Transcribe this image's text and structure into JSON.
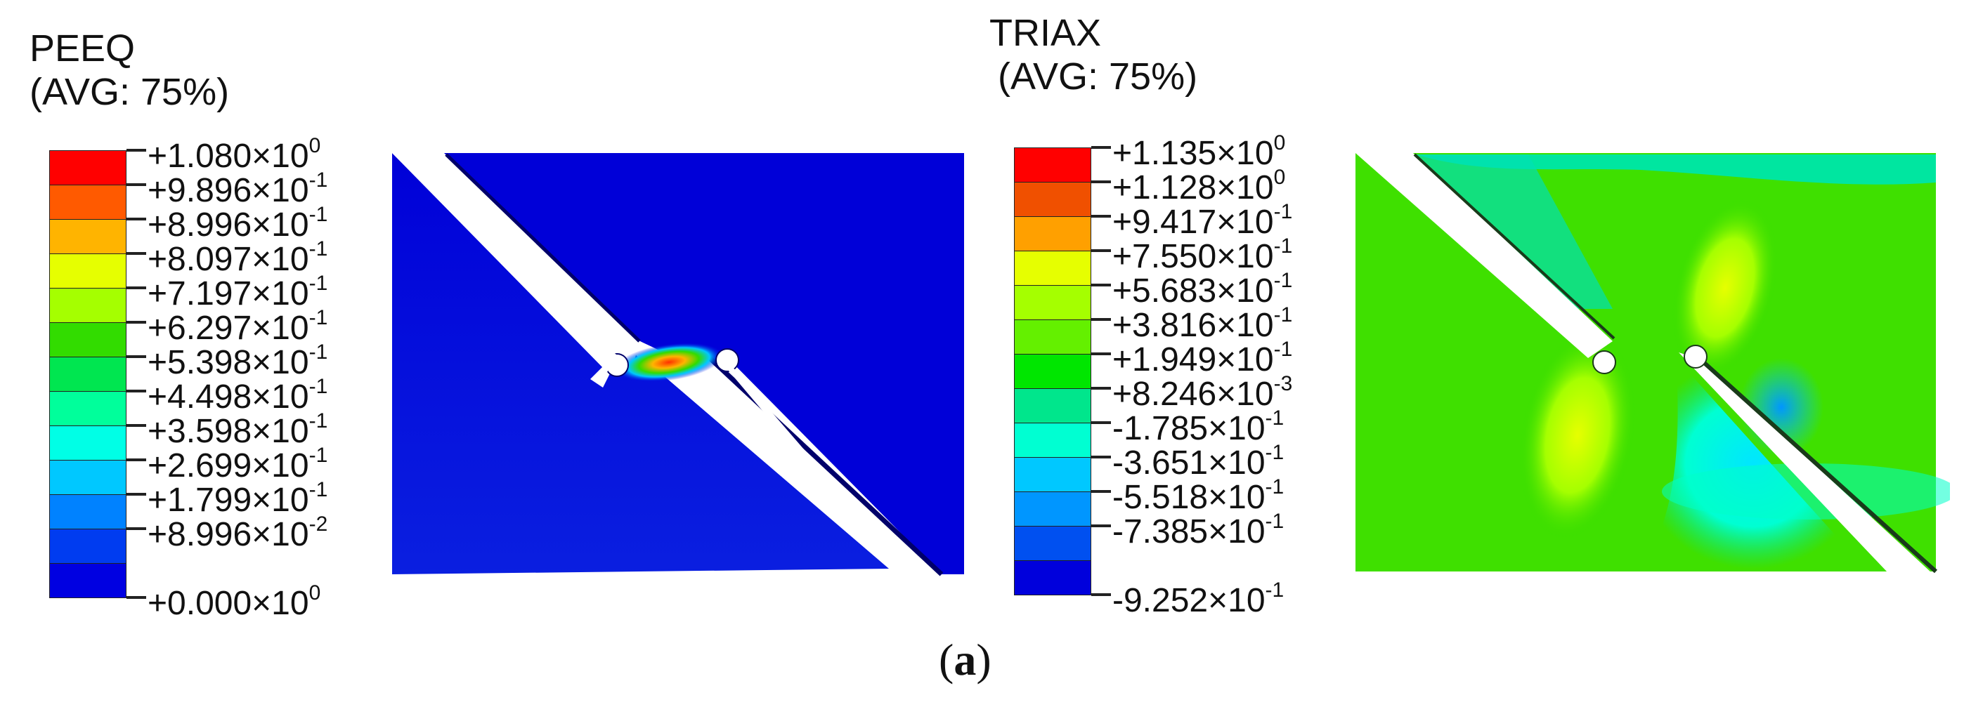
{
  "figure_label": {
    "open": "(",
    "letter": "a",
    "close": ")"
  },
  "left": {
    "title_line1": "PEEQ",
    "title_line2": "(AVG: 75%)",
    "colors": [
      "#ff0000",
      "#ff5a00",
      "#ffb400",
      "#e6ff00",
      "#a5ff00",
      "#32dc00",
      "#00e650",
      "#00ff9b",
      "#00ffe6",
      "#00c8ff",
      "#0082ff",
      "#003cf0",
      "#0000e1"
    ],
    "labels": [
      {
        "mant": "+1.080",
        "exp": "0"
      },
      {
        "mant": "+9.896",
        "exp": "-1"
      },
      {
        "mant": "+8.996",
        "exp": "-1"
      },
      {
        "mant": "+8.097",
        "exp": "-1"
      },
      {
        "mant": "+7.197",
        "exp": "-1"
      },
      {
        "mant": "+6.297",
        "exp": "-1"
      },
      {
        "mant": "+5.398",
        "exp": "-1"
      },
      {
        "mant": "+4.498",
        "exp": "-1"
      },
      {
        "mant": "+3.598",
        "exp": "-1"
      },
      {
        "mant": "+2.699",
        "exp": "-1"
      },
      {
        "mant": "+1.799",
        "exp": "-1"
      },
      {
        "mant": "+8.996",
        "exp": "-2"
      },
      {
        "mant": "+0.000",
        "exp": "0"
      }
    ]
  },
  "right": {
    "title_line1": "TRIAX",
    "title_line2": "(AVG: 75%)",
    "colors": [
      "#ff0000",
      "#f05000",
      "#ffa000",
      "#e6ff00",
      "#a5ff00",
      "#64f000",
      "#00e600",
      "#00e68c",
      "#00ffd2",
      "#00c8ff",
      "#0096ff",
      "#0050f0",
      "#0000dc"
    ],
    "labels": [
      {
        "mant": "+1.135",
        "exp": "0"
      },
      {
        "mant": "+1.128",
        "exp": "0"
      },
      {
        "mant": "+9.417",
        "exp": "-1"
      },
      {
        "mant": "+7.550",
        "exp": "-1"
      },
      {
        "mant": "+5.683",
        "exp": "-1"
      },
      {
        "mant": "+3.816",
        "exp": "-1"
      },
      {
        "mant": "+1.949",
        "exp": "-1"
      },
      {
        "mant": "+8.246",
        "exp": "-3"
      },
      {
        "mant": "-1.785",
        "exp": "-1"
      },
      {
        "mant": "-3.651",
        "exp": "-1"
      },
      {
        "mant": "-5.518",
        "exp": "-1"
      },
      {
        "mant": "-7.385",
        "exp": "-1"
      },
      {
        "mant": "-9.252",
        "exp": "-1"
      }
    ]
  },
  "times_sign": "×10"
}
